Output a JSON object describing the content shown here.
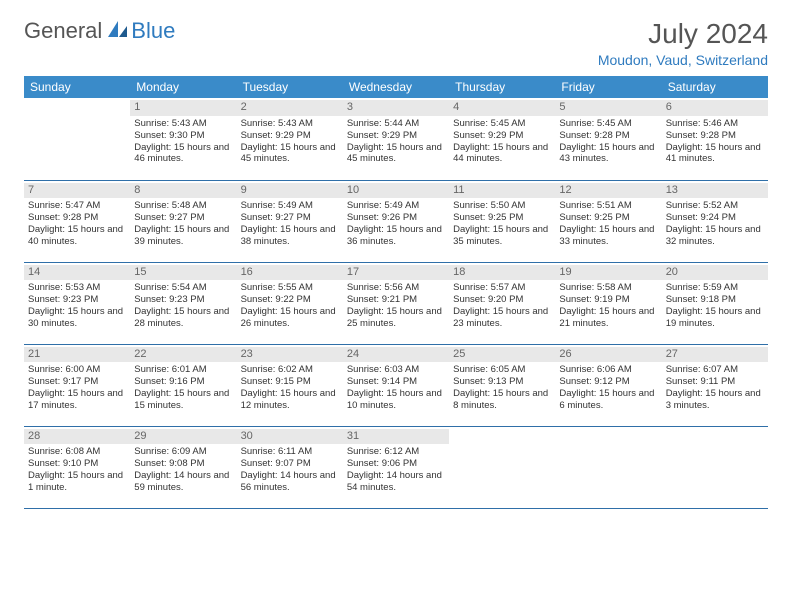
{
  "logo": {
    "part1": "General",
    "part2": "Blue"
  },
  "title": "July 2024",
  "subtitle": "Moudon, Vaud, Switzerland",
  "colors": {
    "header_bg": "#3a8bc9",
    "accent": "#2f7bbf",
    "row_border": "#2f6fa8",
    "daynum_bg": "#e8e8e8",
    "text": "#333333",
    "title_color": "#555555"
  },
  "dayHeaders": [
    "Sunday",
    "Monday",
    "Tuesday",
    "Wednesday",
    "Thursday",
    "Friday",
    "Saturday"
  ],
  "weeks": [
    [
      null,
      {
        "n": "1",
        "sr": "5:43 AM",
        "ss": "9:30 PM",
        "dl": "15 hours and 46 minutes."
      },
      {
        "n": "2",
        "sr": "5:43 AM",
        "ss": "9:29 PM",
        "dl": "15 hours and 45 minutes."
      },
      {
        "n": "3",
        "sr": "5:44 AM",
        "ss": "9:29 PM",
        "dl": "15 hours and 45 minutes."
      },
      {
        "n": "4",
        "sr": "5:45 AM",
        "ss": "9:29 PM",
        "dl": "15 hours and 44 minutes."
      },
      {
        "n": "5",
        "sr": "5:45 AM",
        "ss": "9:28 PM",
        "dl": "15 hours and 43 minutes."
      },
      {
        "n": "6",
        "sr": "5:46 AM",
        "ss": "9:28 PM",
        "dl": "15 hours and 41 minutes."
      }
    ],
    [
      {
        "n": "7",
        "sr": "5:47 AM",
        "ss": "9:28 PM",
        "dl": "15 hours and 40 minutes."
      },
      {
        "n": "8",
        "sr": "5:48 AM",
        "ss": "9:27 PM",
        "dl": "15 hours and 39 minutes."
      },
      {
        "n": "9",
        "sr": "5:49 AM",
        "ss": "9:27 PM",
        "dl": "15 hours and 38 minutes."
      },
      {
        "n": "10",
        "sr": "5:49 AM",
        "ss": "9:26 PM",
        "dl": "15 hours and 36 minutes."
      },
      {
        "n": "11",
        "sr": "5:50 AM",
        "ss": "9:25 PM",
        "dl": "15 hours and 35 minutes."
      },
      {
        "n": "12",
        "sr": "5:51 AM",
        "ss": "9:25 PM",
        "dl": "15 hours and 33 minutes."
      },
      {
        "n": "13",
        "sr": "5:52 AM",
        "ss": "9:24 PM",
        "dl": "15 hours and 32 minutes."
      }
    ],
    [
      {
        "n": "14",
        "sr": "5:53 AM",
        "ss": "9:23 PM",
        "dl": "15 hours and 30 minutes."
      },
      {
        "n": "15",
        "sr": "5:54 AM",
        "ss": "9:23 PM",
        "dl": "15 hours and 28 minutes."
      },
      {
        "n": "16",
        "sr": "5:55 AM",
        "ss": "9:22 PM",
        "dl": "15 hours and 26 minutes."
      },
      {
        "n": "17",
        "sr": "5:56 AM",
        "ss": "9:21 PM",
        "dl": "15 hours and 25 minutes."
      },
      {
        "n": "18",
        "sr": "5:57 AM",
        "ss": "9:20 PM",
        "dl": "15 hours and 23 minutes."
      },
      {
        "n": "19",
        "sr": "5:58 AM",
        "ss": "9:19 PM",
        "dl": "15 hours and 21 minutes."
      },
      {
        "n": "20",
        "sr": "5:59 AM",
        "ss": "9:18 PM",
        "dl": "15 hours and 19 minutes."
      }
    ],
    [
      {
        "n": "21",
        "sr": "6:00 AM",
        "ss": "9:17 PM",
        "dl": "15 hours and 17 minutes."
      },
      {
        "n": "22",
        "sr": "6:01 AM",
        "ss": "9:16 PM",
        "dl": "15 hours and 15 minutes."
      },
      {
        "n": "23",
        "sr": "6:02 AM",
        "ss": "9:15 PM",
        "dl": "15 hours and 12 minutes."
      },
      {
        "n": "24",
        "sr": "6:03 AM",
        "ss": "9:14 PM",
        "dl": "15 hours and 10 minutes."
      },
      {
        "n": "25",
        "sr": "6:05 AM",
        "ss": "9:13 PM",
        "dl": "15 hours and 8 minutes."
      },
      {
        "n": "26",
        "sr": "6:06 AM",
        "ss": "9:12 PM",
        "dl": "15 hours and 6 minutes."
      },
      {
        "n": "27",
        "sr": "6:07 AM",
        "ss": "9:11 PM",
        "dl": "15 hours and 3 minutes."
      }
    ],
    [
      {
        "n": "28",
        "sr": "6:08 AM",
        "ss": "9:10 PM",
        "dl": "15 hours and 1 minute."
      },
      {
        "n": "29",
        "sr": "6:09 AM",
        "ss": "9:08 PM",
        "dl": "14 hours and 59 minutes."
      },
      {
        "n": "30",
        "sr": "6:11 AM",
        "ss": "9:07 PM",
        "dl": "14 hours and 56 minutes."
      },
      {
        "n": "31",
        "sr": "6:12 AM",
        "ss": "9:06 PM",
        "dl": "14 hours and 54 minutes."
      },
      null,
      null,
      null
    ]
  ],
  "labels": {
    "sunrise": "Sunrise: ",
    "sunset": "Sunset: ",
    "daylight": "Daylight: "
  }
}
